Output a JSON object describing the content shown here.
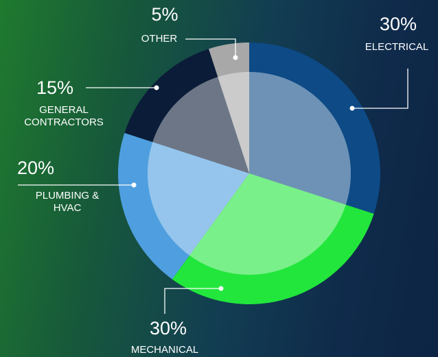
{
  "chart_data": {
    "type": "pie",
    "categories": [
      "ELECTRICAL",
      "MECHANICAL",
      "PLUMBING & HVAC",
      "GENERAL CONTRACTORS",
      "OTHER"
    ],
    "values": [
      30,
      30,
      20,
      15,
      5
    ],
    "value_labels": [
      "30%",
      "30%",
      "20%",
      "15%",
      "5%"
    ],
    "colors": [
      "#0d4a86",
      "#22e63c",
      "#4f9fe0",
      "#0b1c38",
      "#a8a8a8"
    ]
  }
}
